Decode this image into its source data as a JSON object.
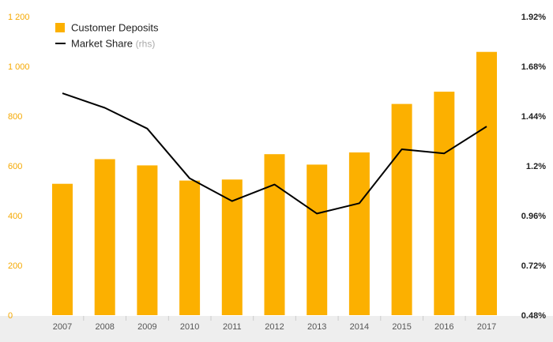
{
  "chart_data": {
    "type": "bar",
    "categories": [
      "2007",
      "2008",
      "2009",
      "2010",
      "2011",
      "2012",
      "2013",
      "2014",
      "2015",
      "2016",
      "2017"
    ],
    "series": [
      {
        "name": "Customer Deposits",
        "type": "bar",
        "axis": "left",
        "values": [
          528,
          627,
          602,
          541,
          545,
          647,
          605,
          654,
          849,
          898,
          1058
        ]
      },
      {
        "name": "Market Share",
        "name_suffix": "(rhs)",
        "type": "line",
        "axis": "right",
        "values": [
          1.55,
          1.48,
          1.38,
          1.14,
          1.03,
          1.11,
          0.97,
          1.02,
          1.28,
          1.26,
          1.39
        ]
      }
    ],
    "left_axis": {
      "ylim": [
        0,
        1200
      ],
      "ticks": [
        0,
        200,
        400,
        600,
        800,
        1000,
        1200
      ],
      "tick_labels": [
        "0",
        "200",
        "400",
        "600",
        "800",
        "1 000",
        "1 200"
      ]
    },
    "right_axis": {
      "ylim": [
        0.48,
        1.92
      ],
      "ticks": [
        0.48,
        0.72,
        0.96,
        1.2,
        1.44,
        1.68,
        1.92
      ],
      "tick_labels": [
        "0.48%",
        "0.72%",
        "0.96%",
        "1.2%",
        "1.44%",
        "1.68%",
        "1.92%"
      ]
    },
    "legend_position": "top-left",
    "grid": false
  },
  "colors": {
    "bar": "#FCB000",
    "line": "#000000",
    "left_axis_text": "#F5A800",
    "right_axis_text": "#222222",
    "x_axis_text": "#555555",
    "x_axis_band": "#EEEEEE",
    "legend_text": "#222222",
    "legend_suffix": "#AAAAAA",
    "tick_mark": "#CCCCCC"
  }
}
